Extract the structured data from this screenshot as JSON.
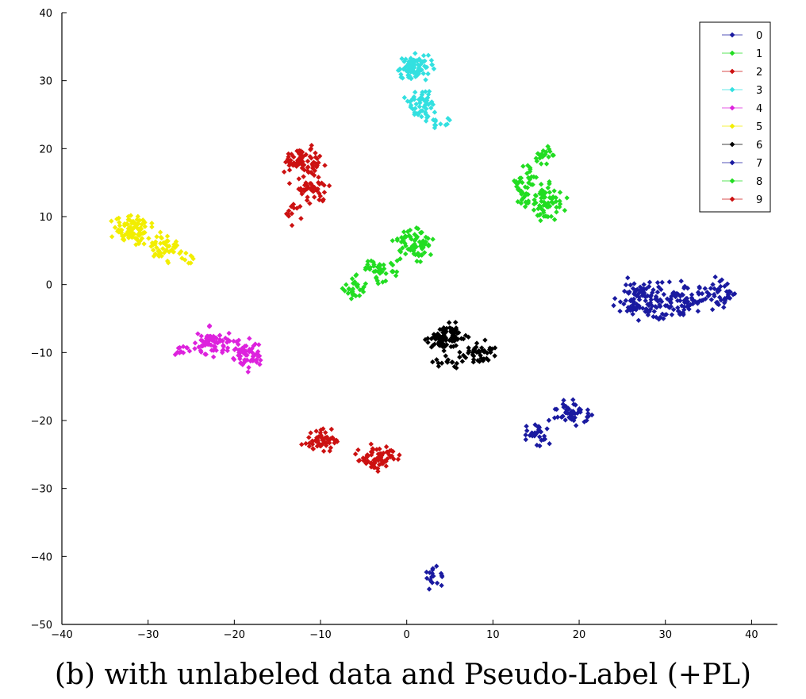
{
  "caption": "(b) with unlabeled data and Pseudo-Label (+PL)",
  "chart_data": {
    "type": "scatter",
    "title": "",
    "xlabel": "",
    "ylabel": "",
    "xlim": [
      -40,
      43
    ],
    "ylim": [
      -50,
      40
    ],
    "xticks": [
      -40,
      -30,
      -20,
      -10,
      0,
      10,
      20,
      30,
      40
    ],
    "yticks": [
      -50,
      -40,
      -30,
      -20,
      -10,
      0,
      10,
      20,
      30,
      40
    ],
    "grid": false,
    "legend_position": "top-right",
    "marker": "diamond",
    "series": [
      {
        "name": "0",
        "color": "#1a1aa0",
        "clusters": [
          {
            "cx": 27,
            "cy": -2,
            "rx": 3.2,
            "ry": 3.6,
            "n": 90
          },
          {
            "cx": 32,
            "cy": -2.5,
            "rx": 4.5,
            "ry": 3.6,
            "n": 80
          },
          {
            "cx": 36.5,
            "cy": -1.5,
            "rx": 2.5,
            "ry": 3,
            "n": 40
          },
          {
            "cx": 29,
            "cy": -4.5,
            "rx": 3,
            "ry": 1.5,
            "n": 15
          }
        ]
      },
      {
        "name": "1",
        "color": "#22dd22",
        "clusters": [
          {
            "cx": 1,
            "cy": 6,
            "rx": 3,
            "ry": 3.2,
            "n": 70
          },
          {
            "cx": -3,
            "cy": 2,
            "rx": 3.5,
            "ry": 2.5,
            "n": 40
          },
          {
            "cx": -6,
            "cy": -0.5,
            "rx": 2,
            "ry": 2,
            "n": 30
          }
        ]
      },
      {
        "name": "2",
        "color": "#cc1111",
        "clusters": [
          {
            "cx": -12,
            "cy": 18,
            "rx": 2.8,
            "ry": 2.8,
            "n": 75
          },
          {
            "cx": -11,
            "cy": 14,
            "rx": 3,
            "ry": 2.5,
            "n": 45
          },
          {
            "cx": -13.5,
            "cy": 10.5,
            "rx": 1.5,
            "ry": 2,
            "n": 12
          }
        ]
      },
      {
        "name": "3",
        "color": "#33e0e0",
        "clusters": [
          {
            "cx": 1,
            "cy": 32,
            "rx": 3,
            "ry": 2.6,
            "n": 80
          },
          {
            "cx": 1.5,
            "cy": 26.5,
            "rx": 2.5,
            "ry": 3,
            "n": 55
          },
          {
            "cx": 4,
            "cy": 24,
            "rx": 2,
            "ry": 1.5,
            "n": 12
          }
        ]
      },
      {
        "name": "4",
        "color": "#dd22dd",
        "clusters": [
          {
            "cx": -22.5,
            "cy": -8.5,
            "rx": 3,
            "ry": 2.6,
            "n": 70
          },
          {
            "cx": -18.5,
            "cy": -10.5,
            "rx": 2.6,
            "ry": 3,
            "n": 60
          },
          {
            "cx": -26,
            "cy": -9.5,
            "rx": 1.5,
            "ry": 1.5,
            "n": 12
          }
        ]
      },
      {
        "name": "5",
        "color": "#f2ee00",
        "clusters": [
          {
            "cx": -32,
            "cy": 8,
            "rx": 3.3,
            "ry": 3,
            "n": 90
          },
          {
            "cx": -28,
            "cy": 5.5,
            "rx": 2.8,
            "ry": 2.5,
            "n": 45
          },
          {
            "cx": -25.5,
            "cy": 3.8,
            "rx": 1.2,
            "ry": 1,
            "n": 8
          }
        ]
      },
      {
        "name": "6",
        "color": "#000000",
        "clusters": [
          {
            "cx": 4.5,
            "cy": -8,
            "rx": 3.2,
            "ry": 2.8,
            "n": 90
          },
          {
            "cx": 8.5,
            "cy": -10,
            "rx": 2.6,
            "ry": 2.2,
            "n": 40
          },
          {
            "cx": 5,
            "cy": -11.5,
            "rx": 2.5,
            "ry": 1.2,
            "n": 15
          }
        ]
      },
      {
        "name": "7",
        "color": "#1a1aa0",
        "clusters": [
          {
            "cx": 19,
            "cy": -19,
            "rx": 3.5,
            "ry": 2.2,
            "n": 55
          },
          {
            "cx": 15,
            "cy": -22,
            "rx": 2.5,
            "ry": 2,
            "n": 30
          },
          {
            "cx": 3,
            "cy": -43,
            "rx": 1.4,
            "ry": 2.2,
            "n": 18
          }
        ]
      },
      {
        "name": "8",
        "color": "#22dd22",
        "clusters": [
          {
            "cx": 16,
            "cy": 12,
            "rx": 3,
            "ry": 3.5,
            "n": 70
          },
          {
            "cx": 13.5,
            "cy": 14.5,
            "rx": 2,
            "ry": 3.5,
            "n": 40
          },
          {
            "cx": 16,
            "cy": 19,
            "rx": 1.8,
            "ry": 1.8,
            "n": 20
          }
        ]
      },
      {
        "name": "9",
        "color": "#cc1111",
        "clusters": [
          {
            "cx": -3.5,
            "cy": -25.5,
            "rx": 2.8,
            "ry": 2.6,
            "n": 70
          },
          {
            "cx": -10,
            "cy": -23,
            "rx": 2.8,
            "ry": 2.3,
            "n": 55
          }
        ]
      }
    ]
  }
}
